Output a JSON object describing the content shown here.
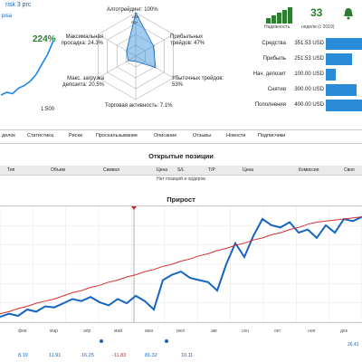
{
  "header": {
    "title": "risk 3 prc",
    "subtitle": "pisa",
    "growth": "224%",
    "leverage": "1:500"
  },
  "radar": {
    "labels": {
      "algo": "Алготрейдинг: 100%",
      "profit_trades": "Прибыльных трейдов: 47%",
      "loss_trades": "Убыточных трейдов: 53%",
      "activity": "Торговая активность: 7.1%",
      "max_load": "Макс. загрузка депозита: 20.5%",
      "max_drawdown": "Максимальная просадка: 24.3%"
    },
    "axis_ticks": [
      "100+",
      "SD+"
    ],
    "values": {
      "algo": 1.0,
      "profit_trades": 0.47,
      "loss_trades": 0.53,
      "activity": 0.071,
      "max_load": 0.205,
      "max_drawdown": 0.243
    },
    "color": "#2a8bd9"
  },
  "reliability": {
    "label": "Надежность",
    "level": 5,
    "weeks_value": "33",
    "weeks_label": "недели (с 2019)"
  },
  "stats": [
    {
      "label": "Средства",
      "value": "351.53 USD",
      "fraction": 1.0
    },
    {
      "label": "Прибыль",
      "value": "251.53 USD",
      "fraction": 0.72
    },
    {
      "label": "Нач. депозит",
      "value": "100.00 USD",
      "fraction": 0.28
    },
    {
      "label": "Снятия",
      "value": "300.00 USD",
      "fraction": 0.85
    },
    {
      "label": "Пополнения",
      "value": "400.00 USD",
      "fraction": 1.0
    }
  ],
  "tabs": [
    "делок",
    "Статистика",
    "Риски",
    "Проскальзывание",
    "Описание",
    "Отзывы",
    "Новости",
    "Подписчики"
  ],
  "positions": {
    "title": "Открытые позиции",
    "columns": [
      "Тип",
      "Объем",
      "Символ",
      "Цена",
      "S/L",
      "T/P",
      "Цена",
      "Комиссия",
      "Своп"
    ],
    "empty_text": "Нет позиций и ордеров"
  },
  "growth_chart": {
    "title": "Прирост",
    "months": [
      "фев",
      "мар",
      "апр",
      "май",
      "июн",
      "июл",
      "авг",
      "сен",
      "окт",
      "ноя",
      "дек"
    ],
    "bottom_values": [
      "8.19",
      "11.91",
      "16.25",
      "-11.83",
      "81.32",
      "10.11"
    ],
    "right_value": "26.41"
  },
  "chart_data": {
    "type": "line",
    "title": "Прирост",
    "x": [
      0,
      1,
      2,
      3,
      4,
      5,
      6,
      7,
      8,
      9,
      10,
      11,
      12,
      13,
      14,
      15,
      16,
      17,
      18,
      19,
      20,
      21,
      22,
      23,
      24,
      25,
      26,
      27,
      28,
      29,
      30,
      31,
      32,
      33,
      34,
      35,
      36,
      37,
      38,
      39,
      40
    ],
    "series": [
      {
        "values": [
          5,
          8,
          6,
          12,
          10,
          15,
          14,
          18,
          22,
          20,
          24,
          19,
          16,
          22,
          18,
          25,
          20,
          12,
          40,
          45,
          48,
          42,
          40,
          38,
          30,
          55,
          75,
          62,
          82,
          98,
          92,
          90,
          95,
          85,
          88,
          80,
          92,
          85,
          98,
          96,
          100
        ],
        "color": "#1565c0"
      },
      {
        "values": [
          8,
          10,
          13,
          15,
          18,
          20,
          22,
          25,
          28,
          30,
          33,
          35,
          38,
          40,
          43,
          45,
          48,
          50,
          53,
          55,
          58,
          60,
          63,
          65,
          68,
          70,
          73,
          75,
          78,
          80,
          83,
          85,
          88,
          90,
          93,
          95,
          96,
          97,
          98,
          99,
          100
        ],
        "color": "#d32f2f"
      }
    ],
    "ylim": [
      0,
      110
    ]
  },
  "mini_chart": {
    "type": "line",
    "values": [
      10,
      14,
      12,
      20,
      24,
      30,
      40,
      55,
      70,
      90
    ],
    "color": "#1e88e5"
  }
}
